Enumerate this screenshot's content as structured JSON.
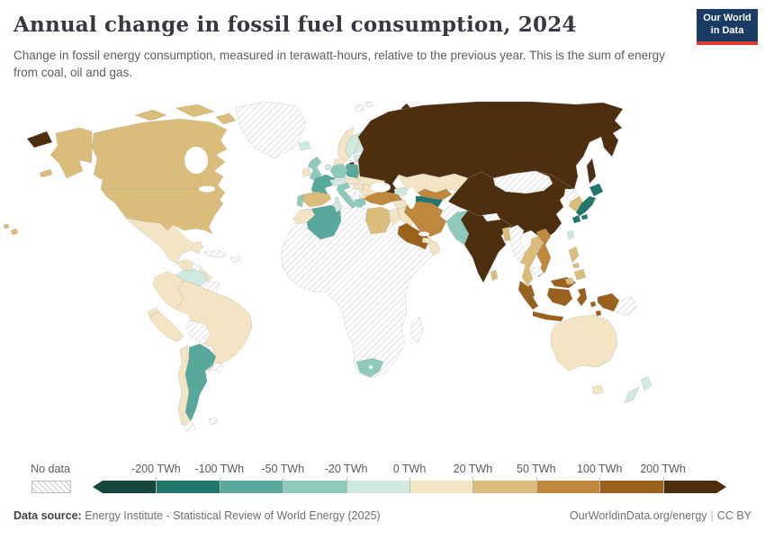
{
  "header": {
    "title": "Annual change in fossil fuel consumption, 2024",
    "subtitle": "Change in fossil energy consumption, measured in terawatt-hours, relative to the previous year. This is the sum of energy from coal, oil and gas."
  },
  "logo": {
    "line1": "Our World",
    "line2": "in Data",
    "bg": "#1a3c62",
    "accent": "#dc3a2c"
  },
  "legend": {
    "no_data_label": "No data",
    "ticks": [
      "-200 TWh",
      "-100 TWh",
      "-50 TWh",
      "-20 TWh",
      "0 TWh",
      "20 TWh",
      "50 TWh",
      "100 TWh",
      "200 TWh"
    ],
    "bins": [
      {
        "range": "< -200",
        "color": "#17463c"
      },
      {
        "range": "-200 to -100",
        "color": "#21776b"
      },
      {
        "range": "-100 to -50",
        "color": "#58a89b"
      },
      {
        "range": "-50 to -20",
        "color": "#8dcabb"
      },
      {
        "range": "-20 to 0",
        "color": "#cfe9de"
      },
      {
        "range": "0 to 20",
        "color": "#f3e4c4"
      },
      {
        "range": "20 to 50",
        "color": "#dabd7b"
      },
      {
        "range": "50 to 100",
        "color": "#c0883d"
      },
      {
        "range": "100 to 200",
        "color": "#9a611c"
      },
      {
        "range": "> 200",
        "color": "#4d2e0e"
      }
    ]
  },
  "footer": {
    "source_label": "Data source:",
    "source_text": " Energy Institute - Statistical Review of World Energy (2025)",
    "credit": "OurWorldinData.org/energy",
    "separator": "|",
    "license": "CC BY"
  },
  "map": {
    "palette": {
      "b1": "#17463c",
      "b2": "#21776b",
      "b3": "#58a89b",
      "b4": "#8dcabb",
      "b5": "#cfe9de",
      "b6": "#f3e4c4",
      "b7": "#dabd7b",
      "b8": "#c0883d",
      "b9": "#9a611c",
      "b10": "#4d2e0e"
    },
    "regions": {
      "chukotka": "b10",
      "alaska": "b7",
      "aleutians": "b7",
      "canada": "b7",
      "arctic-islands-1": "b7",
      "arctic-islands-2": "b7",
      "arctic-islands-3": "b7",
      "greenland": "nd",
      "iceland": "b5",
      "usa": "b7",
      "hawaii-1": "b7",
      "hawaii-2": "b7",
      "mexico": "b6",
      "central-america": "b6",
      "central-america-hatch": "nd",
      "cuba": "nd",
      "hispaniola": "nd",
      "venezuela": "b5",
      "colombia": "b6",
      "guianas": "nd",
      "ecuador": "b6",
      "peru": "b6",
      "brazil": "b6",
      "bolivia": "nd",
      "paraguay": "nd",
      "uruguay": "nd",
      "chile": "b6",
      "argentina": "b3",
      "falklands": "nd",
      "tierra-del-fuego": "nd",
      "norway": "b6",
      "sweden": "b5",
      "finland": "b5",
      "denmark": "b6",
      "baltics": "b5",
      "kaliningrad": "b10",
      "belarus": "b6",
      "ukraine": "b6",
      "poland": "b3",
      "germany": "b4",
      "netherlands": "b5",
      "uk": "b4",
      "ireland": "b6",
      "france": "b3",
      "spain": "b7",
      "portugal": "b4",
      "italy": "b4",
      "sardinia": "b5",
      "sicily": "b4",
      "alpine": "b5",
      "czech-slovakia": "b6",
      "hungary": "b6",
      "romania": "b6",
      "bulgaria": "b6",
      "balkans": "nd",
      "greece": "b4",
      "svalbard-1": "nd",
      "svalbard-2": "nd",
      "novaya-zemlya": "b10",
      "russia": "b10",
      "sakhalin": "b10",
      "kazakhstan": "b6",
      "uzbekistan": "b8",
      "turkmenistan": "b2",
      "kyrgyzstan-tajikistan": "nd",
      "caucasus": "b5",
      "turkey": "b8",
      "syria": "b6",
      "iraq": "b6",
      "jordan-israel": "b6",
      "saudi-arabia": "b9",
      "yemen": "b6",
      "oman": "b6",
      "uae": "b6",
      "iran": "b8",
      "afghanistan": "nd",
      "pakistan": "b4",
      "india": "b10",
      "nepal": "nd",
      "bangladesh": "b7",
      "sri-lanka": "b7",
      "china": "b10",
      "mongolia": "nd",
      "north-korea": "nd",
      "south-korea": "b7",
      "japan-hokkaido": "b2",
      "japan-honshu": "b2",
      "japan-kyushu": "b2",
      "japan-shikoku": "b2",
      "taiwan": "b5",
      "myanmar": "nd",
      "thailand": "b7",
      "laos": "b7",
      "vietnam": "b8",
      "cambodia": "nd",
      "malaysia-peninsula": "b9",
      "malaysia-borneo": "b9",
      "brunei-sabah": "b7",
      "sumatra": "b9",
      "java": "b9",
      "kalimantan": "b9",
      "sulawesi": "b9",
      "lesser-sunda": "b9",
      "maluku-1": "b9",
      "maluku-2": "b9",
      "west-papua": "b9",
      "papua-new-guinea": "nd",
      "philippines-luzon": "b7",
      "philippines-visayas": "b7",
      "philippines-mindanao": "b7",
      "africa": "nd",
      "morocco": "b6",
      "algeria": "b3",
      "tunisia": "b5",
      "egypt": "b7",
      "south-africa": "b4",
      "madagascar": "nd",
      "australia": "b6",
      "tasmania": "b6",
      "new-zealand-north": "b5",
      "new-zealand-south": "b5"
    }
  },
  "chart_data": {
    "type": "heatmap",
    "subtype": "choropleth-world-map",
    "title": "Annual change in fossil fuel consumption, 2024",
    "unit": "TWh",
    "legend_position": "bottom",
    "bins": [
      "< -200",
      "-200 to -100",
      "-100 to -50",
      "-50 to -20",
      "-20 to 0",
      "0 to 20",
      "20 to 50",
      "50 to 100",
      "100 to 200",
      "> 200",
      "No data"
    ],
    "values_by_country": {
      "Russia": "> 200",
      "China": "> 200",
      "India": "> 200",
      "Indonesia": "100 to 200",
      "Malaysia": "100 to 200",
      "Saudi Arabia": "100 to 200",
      "Turkey": "50 to 100",
      "Iran": "50 to 100",
      "Vietnam": "50 to 100",
      "Uzbekistan": "50 to 100",
      "United States": "20 to 50",
      "Canada": "20 to 50",
      "Spain": "20 to 50",
      "Egypt": "20 to 50",
      "South Korea": "20 to 50",
      "Thailand": "20 to 50",
      "Laos": "20 to 50",
      "Bangladesh": "20 to 50",
      "Sri Lanka": "20 to 50",
      "Philippines": "20 to 50",
      "Mexico": "0 to 20",
      "Brazil": "0 to 20",
      "Colombia": "0 to 20",
      "Peru": "0 to 20",
      "Ecuador": "0 to 20",
      "Chile": "0 to 20",
      "Norway": "0 to 20",
      "Ireland": "0 to 20",
      "Denmark": "0 to 20",
      "Ukraine": "0 to 20",
      "Belarus": "0 to 20",
      "Kazakhstan": "0 to 20",
      "Iraq": "0 to 20",
      "Syria": "0 to 20",
      "Yemen": "0 to 20",
      "Oman": "0 to 20",
      "Morocco": "0 to 20",
      "Australia": "0 to 20",
      "Hungary": "0 to 20",
      "Romania": "0 to 20",
      "Venezuela": "-20 to 0",
      "Sweden": "-20 to 0",
      "Finland": "-20 to 0",
      "Iceland": "-20 to 0",
      "Netherlands": "-20 to 0",
      "Austria": "-20 to 0",
      "Switzerland": "-20 to 0",
      "Baltic states": "-20 to 0",
      "New Zealand": "-20 to 0",
      "Taiwan": "-20 to 0",
      "Tunisia": "-20 to 0",
      "Azerbaijan": "-20 to 0",
      "United Kingdom": "-50 to -20",
      "Germany": "-50 to -20",
      "Portugal": "-50 to -20",
      "Italy": "-50 to -20",
      "Greece": "-50 to -20",
      "Pakistan": "-50 to -20",
      "South Africa": "-50 to -20",
      "France": "-100 to -50",
      "Poland": "-100 to -50",
      "Algeria": "-100 to -50",
      "Argentina": "-100 to -50",
      "Japan": "-200 to -100",
      "Turkmenistan": "-200 to -100",
      "Greenland": "No data",
      "Mongolia": "No data",
      "Afghanistan": "No data",
      "Myanmar": "No data",
      "Cambodia": "No data",
      "North Korea": "No data",
      "Papua New Guinea": "No data",
      "Bolivia": "No data",
      "Paraguay": "No data",
      "Uruguay": "No data",
      "Cuba": "No data",
      "Libya": "No data",
      "Madagascar": "No data",
      "Sub-Saharan Africa (most)": "No data"
    }
  }
}
